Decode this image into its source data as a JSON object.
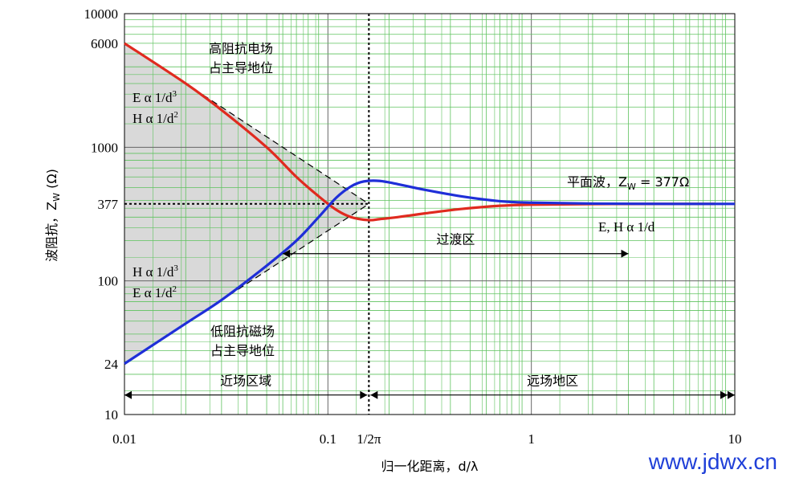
{
  "chart_data": {
    "type": "line",
    "title": "",
    "xlabel": "归一化距离，d/λ",
    "ylabel_main": "波阻抗，Z",
    "ylabel_sub": "W",
    "ylabel_tail": " (Ω)",
    "x_scale": "log",
    "y_scale": "log",
    "xlim": [
      0.01,
      10
    ],
    "ylim": [
      10,
      10000
    ],
    "grid": true,
    "x_ticks": [
      {
        "value": 0.01,
        "label": "0.01"
      },
      {
        "value": 0.1,
        "label": "0.1"
      },
      {
        "value": 0.159,
        "label": "1/2π"
      },
      {
        "value": 1,
        "label": "1"
      },
      {
        "value": 10,
        "label": "10"
      }
    ],
    "y_ticks": [
      {
        "value": 10,
        "label": "10"
      },
      {
        "value": 24,
        "label": "24"
      },
      {
        "value": 100,
        "label": "100"
      },
      {
        "value": 377,
        "label": "377"
      },
      {
        "value": 1000,
        "label": "1000"
      },
      {
        "value": 6000,
        "label": "6000"
      },
      {
        "value": 10000,
        "label": "10000"
      }
    ],
    "series": [
      {
        "color": "#e02a1f",
        "x": [
          0.01,
          0.02,
          0.03,
          0.05,
          0.07,
          0.09,
          0.11,
          0.13,
          0.159,
          0.18,
          0.22,
          0.3,
          0.45,
          0.7,
          1,
          2,
          5,
          8
        ],
        "y": [
          6000,
          3000,
          1900,
          1000,
          600,
          430,
          340,
          300,
          285,
          290,
          300,
          320,
          345,
          365,
          372,
          376,
          377,
          377
        ]
      },
      {
        "color": "#1f2fd8",
        "x": [
          0.01,
          0.02,
          0.03,
          0.05,
          0.07,
          0.09,
          0.11,
          0.13,
          0.15,
          0.18,
          0.22,
          0.3,
          0.45,
          0.7,
          1,
          2,
          5,
          10
        ],
        "y": [
          24,
          48,
          72,
          130,
          200,
          300,
          420,
          510,
          555,
          560,
          530,
          480,
          430,
          395,
          385,
          379,
          377,
          377
        ]
      }
    ],
    "asymptotes": [
      {
        "x": [
          0.01,
          0.159
        ],
        "y": [
          6000,
          377
        ],
        "style": "dashed"
      },
      {
        "x": [
          0.01,
          0.159
        ],
        "y": [
          24,
          377
        ],
        "style": "dashed"
      }
    ],
    "reference_lines": [
      {
        "orientation": "horizontal",
        "value": 377,
        "from": 0.01,
        "to": 0.159,
        "style": "dotted"
      },
      {
        "orientation": "vertical",
        "value": 0.159,
        "style": "dotted"
      }
    ],
    "arrows": [
      {
        "from": 0.01,
        "to": 0.159,
        "y": 14,
        "label": "近场区域"
      },
      {
        "from": 0.159,
        "to": 10,
        "y": 14,
        "label": "远场地区"
      },
      {
        "from": 0.06,
        "to": 3,
        "y": 160,
        "label": "过渡区"
      }
    ],
    "annotations": {
      "high_impedance": [
        "高阻抗电场",
        "占主导地位"
      ],
      "low_impedance": [
        "低阻抗磁场",
        "占主导地位"
      ],
      "e_d3": {
        "main": "E α 1/d",
        "sup": "3"
      },
      "h_d2": {
        "main": "H α 1/d",
        "sup": "2"
      },
      "h_d3": {
        "main": "H α 1/d",
        "sup": "3"
      },
      "e_d2": {
        "main": "E α 1/d",
        "sup": "2"
      },
      "plane_wave": {
        "main": "平面波，Z",
        "sub": "W",
        "tail": " = 377Ω"
      },
      "far_rel": "E, H α 1/d"
    }
  },
  "watermark": "www.jdwx.cn"
}
